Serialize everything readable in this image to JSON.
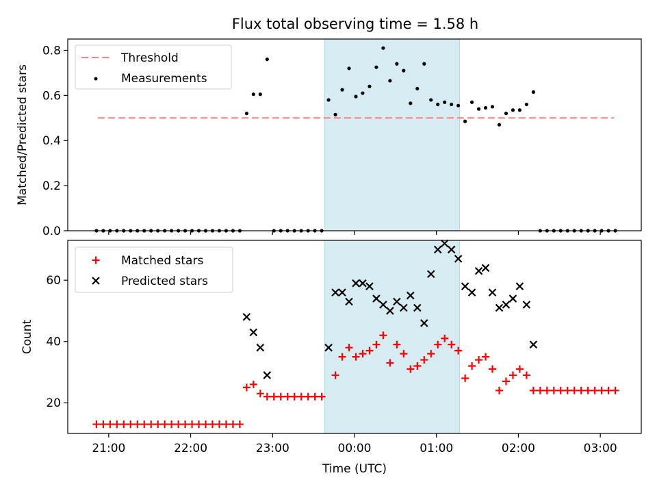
{
  "title": "Flux total observing time = 1.58 h",
  "chart_data": [
    {
      "type": "scatter",
      "panel": "top",
      "ylabel": "Matched/Predicted stars",
      "xlabel": "",
      "ylim": [
        0,
        0.85
      ],
      "yticks": [
        0.0,
        0.2,
        0.4,
        0.6,
        0.8
      ],
      "ytick_labels": [
        "0.0",
        "0.2",
        "0.4",
        "0.6",
        "0.8"
      ],
      "legend": "top-left",
      "highlight_interval": [
        "23:38",
        "01:17"
      ],
      "threshold": {
        "name": "Threshold",
        "value": 0.5,
        "x_range": [
          "20:52",
          "03:10"
        ],
        "color": "#ff7f7f",
        "style": "dashed"
      },
      "series": [
        {
          "name": "Measurements",
          "color": "#000000",
          "marker": "dot",
          "points": [
            [
              "20:51",
              0
            ],
            [
              "20:56",
              0
            ],
            [
              "21:01",
              0
            ],
            [
              "21:06",
              0
            ],
            [
              "21:11",
              0
            ],
            [
              "21:16",
              0
            ],
            [
              "21:21",
              0
            ],
            [
              "21:26",
              0
            ],
            [
              "21:31",
              0
            ],
            [
              "21:36",
              0
            ],
            [
              "21:41",
              0
            ],
            [
              "21:46",
              0
            ],
            [
              "21:51",
              0
            ],
            [
              "21:56",
              0
            ],
            [
              "22:01",
              0
            ],
            [
              "22:06",
              0
            ],
            [
              "22:11",
              0
            ],
            [
              "22:16",
              0
            ],
            [
              "22:21",
              0
            ],
            [
              "22:26",
              0
            ],
            [
              "22:31",
              0
            ],
            [
              "22:36",
              0
            ],
            [
              "22:41",
              0.52
            ],
            [
              "22:46",
              0.605
            ],
            [
              "22:51",
              0.605
            ],
            [
              "22:56",
              0.76
            ],
            [
              "23:01",
              0
            ],
            [
              "23:06",
              0
            ],
            [
              "23:11",
              0
            ],
            [
              "23:16",
              0
            ],
            [
              "23:21",
              0
            ],
            [
              "23:26",
              0
            ],
            [
              "23:31",
              0
            ],
            [
              "23:36",
              0
            ],
            [
              "23:41",
              0.58
            ],
            [
              "23:46",
              0.515
            ],
            [
              "23:51",
              0.625
            ],
            [
              "23:56",
              0.72
            ],
            [
              "00:01",
              0.595
            ],
            [
              "00:06",
              0.61
            ],
            [
              "00:11",
              0.64
            ],
            [
              "00:16",
              0.725
            ],
            [
              "00:21",
              0.81
            ],
            [
              "00:26",
              0.665
            ],
            [
              "00:31",
              0.74
            ],
            [
              "00:36",
              0.71
            ],
            [
              "00:41",
              0.565
            ],
            [
              "00:46",
              0.63
            ],
            [
              "00:51",
              0.74
            ],
            [
              "00:56",
              0.58
            ],
            [
              "01:01",
              0.56
            ],
            [
              "01:06",
              0.57
            ],
            [
              "01:11",
              0.56
            ],
            [
              "01:16",
              0.555
            ],
            [
              "01:21",
              0.485
            ],
            [
              "01:26",
              0.57
            ],
            [
              "01:31",
              0.54
            ],
            [
              "01:36",
              0.545
            ],
            [
              "01:41",
              0.55
            ],
            [
              "01:46",
              0.47
            ],
            [
              "01:51",
              0.52
            ],
            [
              "01:56",
              0.535
            ],
            [
              "02:01",
              0.535
            ],
            [
              "02:06",
              0.56
            ],
            [
              "02:11",
              0.615
            ],
            [
              "02:16",
              0
            ],
            [
              "02:21",
              0
            ],
            [
              "02:26",
              0
            ],
            [
              "02:31",
              0
            ],
            [
              "02:36",
              0
            ],
            [
              "02:41",
              0
            ],
            [
              "02:46",
              0
            ],
            [
              "02:51",
              0
            ],
            [
              "02:56",
              0
            ],
            [
              "03:01",
              0
            ],
            [
              "03:06",
              0
            ],
            [
              "03:11",
              0
            ]
          ]
        }
      ]
    },
    {
      "type": "scatter",
      "panel": "bottom",
      "ylabel": "Count",
      "xlabel": "Time (UTC)",
      "ylim": [
        10,
        73
      ],
      "yticks": [
        20,
        40,
        60
      ],
      "ytick_labels": [
        "20",
        "40",
        "60"
      ],
      "x_range": [
        "20:30",
        "03:30"
      ],
      "xticks": [
        "21:00",
        "22:00",
        "23:00",
        "00:00",
        "01:00",
        "02:00",
        "03:00"
      ],
      "legend": "top-left",
      "highlight_interval": [
        "23:38",
        "01:17"
      ],
      "series": [
        {
          "name": "Matched stars",
          "color": "#ff0000",
          "marker": "plus",
          "points": [
            [
              "20:51",
              13
            ],
            [
              "20:56",
              13
            ],
            [
              "21:01",
              13
            ],
            [
              "21:06",
              13
            ],
            [
              "21:11",
              13
            ],
            [
              "21:16",
              13
            ],
            [
              "21:21",
              13
            ],
            [
              "21:26",
              13
            ],
            [
              "21:31",
              13
            ],
            [
              "21:36",
              13
            ],
            [
              "21:41",
              13
            ],
            [
              "21:46",
              13
            ],
            [
              "21:51",
              13
            ],
            [
              "21:56",
              13
            ],
            [
              "22:01",
              13
            ],
            [
              "22:06",
              13
            ],
            [
              "22:11",
              13
            ],
            [
              "22:16",
              13
            ],
            [
              "22:21",
              13
            ],
            [
              "22:26",
              13
            ],
            [
              "22:31",
              13
            ],
            [
              "22:36",
              13
            ],
            [
              "22:41",
              25
            ],
            [
              "22:46",
              26
            ],
            [
              "22:51",
              23
            ],
            [
              "22:56",
              22
            ],
            [
              "23:01",
              22
            ],
            [
              "23:06",
              22
            ],
            [
              "23:11",
              22
            ],
            [
              "23:16",
              22
            ],
            [
              "23:21",
              22
            ],
            [
              "23:26",
              22
            ],
            [
              "23:31",
              22
            ],
            [
              "23:36",
              22
            ],
            [
              "23:46",
              29
            ],
            [
              "23:51",
              35
            ],
            [
              "23:56",
              38
            ],
            [
              "00:01",
              35
            ],
            [
              "00:06",
              36
            ],
            [
              "00:11",
              37
            ],
            [
              "00:16",
              39
            ],
            [
              "00:21",
              42
            ],
            [
              "00:26",
              33
            ],
            [
              "00:31",
              39
            ],
            [
              "00:36",
              36
            ],
            [
              "00:41",
              31
            ],
            [
              "00:46",
              32
            ],
            [
              "00:51",
              34
            ],
            [
              "00:56",
              36
            ],
            [
              "01:01",
              39
            ],
            [
              "01:06",
              41
            ],
            [
              "01:11",
              39
            ],
            [
              "01:16",
              37
            ],
            [
              "01:21",
              28
            ],
            [
              "01:26",
              32
            ],
            [
              "01:31",
              34
            ],
            [
              "01:36",
              35
            ],
            [
              "01:41",
              31
            ],
            [
              "01:46",
              24
            ],
            [
              "01:51",
              27
            ],
            [
              "01:56",
              29
            ],
            [
              "02:01",
              31
            ],
            [
              "02:06",
              29
            ],
            [
              "02:11",
              24
            ],
            [
              "02:16",
              24
            ],
            [
              "02:21",
              24
            ],
            [
              "02:26",
              24
            ],
            [
              "02:31",
              24
            ],
            [
              "02:36",
              24
            ],
            [
              "02:41",
              24
            ],
            [
              "02:46",
              24
            ],
            [
              "02:51",
              24
            ],
            [
              "02:56",
              24
            ],
            [
              "03:01",
              24
            ],
            [
              "03:06",
              24
            ],
            [
              "03:11",
              24
            ]
          ]
        },
        {
          "name": "Predicted stars",
          "color": "#000000",
          "marker": "x",
          "points": [
            [
              "22:41",
              48
            ],
            [
              "22:46",
              43
            ],
            [
              "22:51",
              38
            ],
            [
              "22:56",
              29
            ],
            [
              "23:41",
              38
            ],
            [
              "23:46",
              56
            ],
            [
              "23:51",
              56
            ],
            [
              "23:56",
              53
            ],
            [
              "00:01",
              59
            ],
            [
              "00:06",
              59
            ],
            [
              "00:11",
              58
            ],
            [
              "00:16",
              54
            ],
            [
              "00:21",
              52
            ],
            [
              "00:26",
              50
            ],
            [
              "00:31",
              53
            ],
            [
              "00:36",
              51
            ],
            [
              "00:41",
              55
            ],
            [
              "00:46",
              51
            ],
            [
              "00:51",
              46
            ],
            [
              "00:56",
              62
            ],
            [
              "01:01",
              70
            ],
            [
              "01:06",
              72
            ],
            [
              "01:11",
              70
            ],
            [
              "01:16",
              67
            ],
            [
              "01:21",
              58
            ],
            [
              "01:26",
              56
            ],
            [
              "01:31",
              63
            ],
            [
              "01:36",
              64
            ],
            [
              "01:41",
              56
            ],
            [
              "01:46",
              51
            ],
            [
              "01:51",
              52
            ],
            [
              "01:56",
              54
            ],
            [
              "02:01",
              58
            ],
            [
              "02:06",
              52
            ],
            [
              "02:11",
              39
            ]
          ]
        }
      ]
    }
  ]
}
